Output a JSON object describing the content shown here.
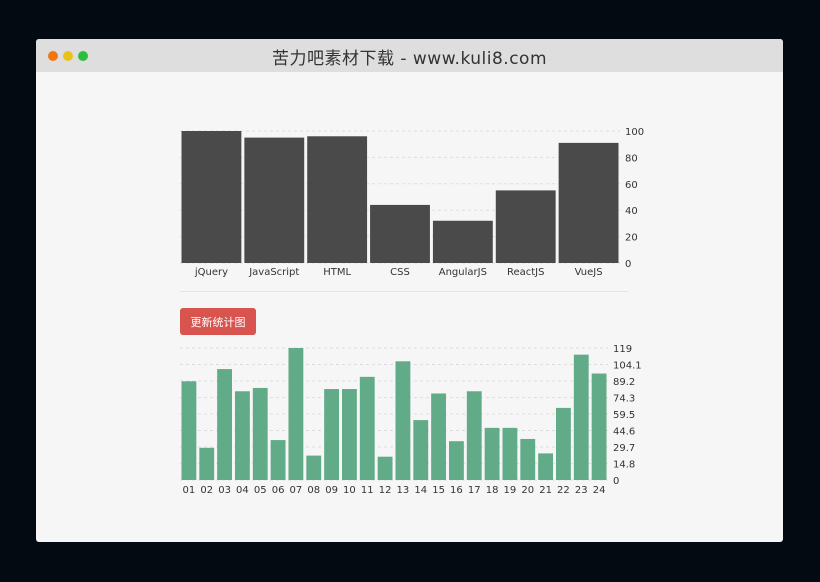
{
  "window": {
    "title": "苦力吧素材下载 - www.kuli8.com"
  },
  "update_button": {
    "label": "更新统计图"
  },
  "chart_data": [
    {
      "type": "bar",
      "categories": [
        "jQuery",
        "JavaScript",
        "HTML",
        "CSS",
        "AngularJS",
        "ReactJS",
        "VueJS"
      ],
      "values": [
        100,
        95,
        96,
        44,
        32,
        55,
        91
      ],
      "ylim": [
        0,
        100
      ],
      "yticks": [
        "0",
        "20",
        "40",
        "60",
        "80",
        "100"
      ],
      "ytick_values": [
        0,
        20,
        40,
        60,
        80,
        100
      ],
      "grid": true,
      "color": "#4a4a4a"
    },
    {
      "type": "bar",
      "categories": [
        "01",
        "02",
        "03",
        "04",
        "05",
        "06",
        "07",
        "08",
        "09",
        "10",
        "11",
        "12",
        "13",
        "14",
        "15",
        "16",
        "17",
        "18",
        "19",
        "20",
        "21",
        "22",
        "23",
        "24"
      ],
      "values": [
        89,
        29,
        100,
        80,
        83,
        36,
        119,
        22,
        82,
        82,
        93,
        21,
        107,
        54,
        78,
        35,
        80,
        47,
        47,
        37,
        24,
        65,
        113,
        96
      ],
      "ylim": [
        0,
        119
      ],
      "yticks": [
        "0",
        "14.8",
        "29.7",
        "44.6",
        "59.5",
        "74.3",
        "89.2",
        "104.1",
        "119"
      ],
      "ytick_values": [
        0,
        14.8,
        29.7,
        44.6,
        59.5,
        74.3,
        89.2,
        104.1,
        119
      ],
      "grid": true,
      "color": "#62ab88"
    }
  ]
}
